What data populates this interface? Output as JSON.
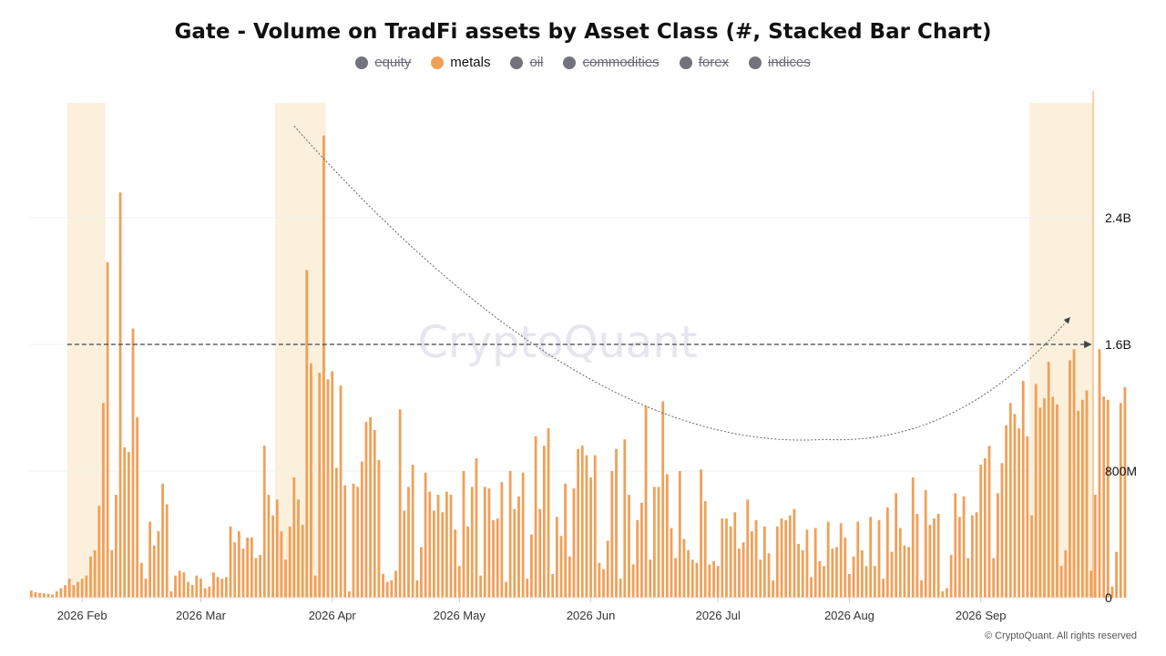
{
  "chart_data": {
    "type": "bar",
    "stacked": true,
    "title": "Gate - Volume on TradFi assets by Asset Class (#, Stacked Bar Chart)",
    "watermark": "CryptoQuant",
    "copyright": "© CryptoQuant. All rights reserved",
    "legend": [
      {
        "name": "equity",
        "active": false,
        "color": "#73737d"
      },
      {
        "name": "metals",
        "active": true,
        "color": "#f0a058"
      },
      {
        "name": "oil",
        "active": false,
        "color": "#73737d"
      },
      {
        "name": "commodities",
        "active": false,
        "color": "#73737d"
      },
      {
        "name": "forex",
        "active": false,
        "color": "#73737d"
      },
      {
        "name": "indices",
        "active": false,
        "color": "#73737d"
      }
    ],
    "x_ticks": [
      "2026 Feb",
      "2026 Mar",
      "2026 Apr",
      "2026 May",
      "2026 Jun",
      "2026 Jul",
      "2026 Aug",
      "2026 Sep"
    ],
    "y_ticks": [
      "0",
      "800M",
      "1.6B",
      "2.4B"
    ],
    "y_tick_values": [
      0,
      800000000,
      1600000000,
      2400000000
    ],
    "ylim": [
      0,
      3200000000
    ],
    "y_axis_side": "right",
    "x_start": "2026-01-20",
    "x_end": "2026-09-27",
    "series": [
      {
        "name": "metals",
        "color": "#f0a058",
        "values": [
          45,
          35,
          30,
          28,
          25,
          20,
          40,
          60,
          80,
          120,
          80,
          100,
          120,
          140,
          260,
          300,
          580,
          1230,
          2120,
          300,
          650,
          2560,
          950,
          920,
          1700,
          1140,
          220,
          120,
          480,
          330,
          420,
          720,
          590,
          40,
          140,
          170,
          160,
          100,
          80,
          140,
          120,
          60,
          70,
          160,
          130,
          120,
          130,
          450,
          350,
          420,
          310,
          380,
          380,
          250,
          270,
          960,
          650,
          520,
          620,
          420,
          240,
          450,
          760,
          620,
          460,
          2070,
          1480,
          140,
          1420,
          2920,
          1380,
          1430,
          820,
          1340,
          710,
          40,
          720,
          700,
          860,
          1110,
          1140,
          1060,
          870,
          150,
          100,
          110,
          170,
          1190,
          550,
          700,
          840,
          110,
          320,
          790,
          670,
          550,
          650,
          540,
          670,
          650,
          430,
          200,
          800,
          450,
          700,
          880,
          140,
          700,
          690,
          490,
          500,
          730,
          100,
          800,
          560,
          640,
          790,
          120,
          400,
          1020,
          560,
          960,
          1070,
          150,
          510,
          390,
          720,
          260,
          690,
          940,
          960,
          900,
          760,
          900,
          220,
          180,
          360,
          800,
          940,
          120,
          1000,
          650,
          210,
          490,
          600,
          1210,
          240,
          700,
          700,
          1240,
          780,
          440,
          250,
          800,
          370,
          300,
          240,
          220,
          810,
          610,
          210,
          230,
          200,
          500,
          500,
          450,
          540,
          310,
          350,
          620,
          420,
          490,
          240,
          450,
          280,
          110,
          450,
          500,
          490,
          520,
          560,
          340,
          300,
          430,
          130,
          440,
          230,
          200,
          480,
          310,
          320,
          470,
          380,
          150,
          260,
          480,
          300,
          200,
          510,
          200,
          490,
          120,
          570,
          290,
          660,
          440,
          330,
          320,
          760,
          530,
          110,
          680,
          460,
          500,
          530,
          40,
          60,
          270,
          660,
          510,
          640,
          250,
          520,
          540,
          840,
          880,
          960,
          250,
          660,
          850,
          1090,
          1230,
          1160,
          1070,
          1370,
          1020,
          520,
          1350,
          1200,
          1260,
          1490,
          1270,
          1220,
          200,
          300,
          1500,
          1570,
          1180,
          1250,
          1310,
          170,
          650,
          1570,
          1270,
          1250,
          70,
          290,
          1230,
          1330
        ]
      }
    ],
    "highlight_ranges": [
      [
        "2026-01-29",
        "2026-02-06"
      ],
      [
        "2026-03-19",
        "2026-03-30"
      ],
      [
        "2026-09-13",
        "2026-09-27"
      ]
    ],
    "reference_line": {
      "value": 1600000000,
      "from": "2026-01-29",
      "to": "2026-09-27",
      "style": "dashed-arrow"
    },
    "trend_curve": {
      "from": [
        "2026-03-23",
        2980000000
      ],
      "min": [
        "2026-07-26",
        1000000000
      ],
      "to": [
        "2026-09-22",
        1770000000
      ],
      "style": "dotted-arrow"
    }
  }
}
